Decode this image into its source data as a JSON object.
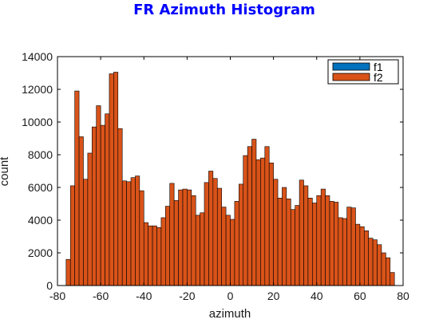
{
  "chart_data": {
    "type": "bar",
    "title": "FR Azimuth Histogram",
    "xlabel": "azimuth",
    "ylabel": "count",
    "xlim": [
      -80,
      80
    ],
    "ylim": [
      0,
      14000
    ],
    "x_ticks": [
      -80,
      -60,
      -40,
      -20,
      0,
      20,
      40,
      60,
      80
    ],
    "y_ticks": [
      0,
      2000,
      4000,
      6000,
      8000,
      10000,
      12000,
      14000
    ],
    "grid": false,
    "legend_position": "top-right",
    "bin_width": 2,
    "bin_start": -76,
    "series": [
      {
        "name": "f1",
        "color": "#0072bd",
        "values": []
      },
      {
        "name": "f2",
        "color": "#d95319",
        "values": [
          1600,
          6100,
          11900,
          9100,
          6500,
          8100,
          9700,
          11000,
          9800,
          10500,
          12950,
          13050,
          9600,
          6400,
          6350,
          6600,
          6700,
          5800,
          3850,
          3650,
          3650,
          3550,
          4150,
          4850,
          6250,
          5200,
          5850,
          5900,
          5850,
          5500,
          4300,
          4450,
          6300,
          7000,
          6550,
          5950,
          4800,
          4300,
          4050,
          5150,
          6200,
          7950,
          8500,
          8950,
          7700,
          7800,
          8500,
          7500,
          6500,
          5350,
          6000,
          5300,
          4650,
          4900,
          6450,
          6100,
          5350,
          5050,
          5500,
          5900,
          5500,
          5150,
          5100,
          4150,
          4100,
          4800,
          4750,
          3750,
          3600,
          3350,
          2900,
          2800,
          2500,
          2000,
          1700,
          800
        ]
      }
    ]
  }
}
